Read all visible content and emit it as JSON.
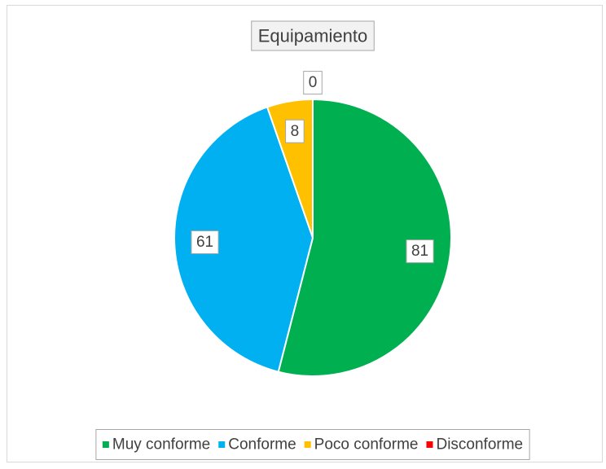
{
  "chart_data": {
    "type": "pie",
    "title": "Equipamiento",
    "categories": [
      "Muy conforme",
      "Conforme",
      "Poco conforme",
      "Disconforme"
    ],
    "values": [
      81,
      61,
      8,
      0
    ],
    "colors": [
      "#00b050",
      "#00b0f0",
      "#ffc000",
      "#ff0000"
    ],
    "legend": "bottom"
  }
}
